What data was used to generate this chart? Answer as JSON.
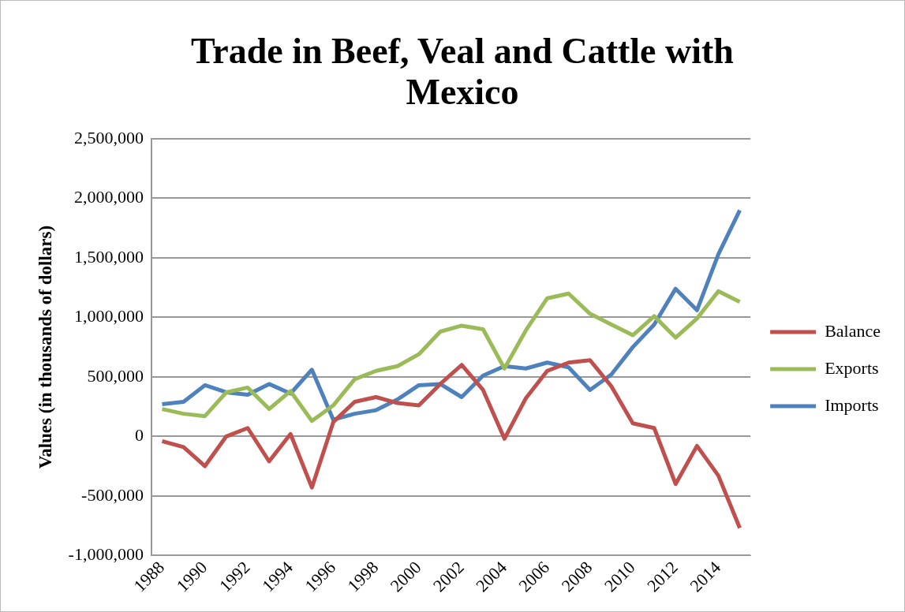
{
  "chart_data": {
    "type": "line",
    "title": "Trade in Beef, Veal and Cattle with Mexico",
    "ylabel": "Values (in thousands of dollars)",
    "categories": [
      "1988",
      null,
      "1990",
      null,
      "1992",
      null,
      "1994",
      null,
      "1996",
      null,
      "1998",
      null,
      "2000",
      null,
      "2002",
      null,
      "2004",
      null,
      "2006",
      null,
      "2008",
      null,
      "2010",
      null,
      "2012",
      null,
      "2014",
      null
    ],
    "series": [
      {
        "name": "Balance",
        "color": "#c0504d",
        "values": [
          -40000,
          -90000,
          -250000,
          0,
          70000,
          -210000,
          20000,
          -430000,
          120000,
          290000,
          330000,
          280000,
          260000,
          440000,
          600000,
          390000,
          -20000,
          320000,
          550000,
          620000,
          640000,
          420000,
          110000,
          70000,
          -400000,
          -80000,
          -330000,
          -770000
        ]
      },
      {
        "name": "Exports",
        "color": "#9bbb59",
        "values": [
          230000,
          190000,
          170000,
          370000,
          410000,
          230000,
          380000,
          130000,
          260000,
          480000,
          550000,
          590000,
          690000,
          880000,
          930000,
          900000,
          570000,
          890000,
          1160000,
          1200000,
          1030000,
          940000,
          850000,
          1010000,
          830000,
          990000,
          1220000,
          1130000
        ]
      },
      {
        "name": "Imports",
        "color": "#4f81bd",
        "values": [
          270000,
          290000,
          430000,
          370000,
          350000,
          440000,
          360000,
          560000,
          140000,
          190000,
          220000,
          310000,
          430000,
          440000,
          330000,
          510000,
          590000,
          570000,
          620000,
          580000,
          390000,
          520000,
          750000,
          940000,
          1240000,
          1060000,
          1530000,
          1900000
        ]
      }
    ],
    "ylim": [
      -1000000,
      2500000
    ],
    "yticks": [
      {
        "value": -1000000,
        "label": "-1,000,000"
      },
      {
        "value": -500000,
        "label": "-500,000"
      },
      0,
      {
        "value": 500000,
        "label": "500,000"
      },
      {
        "value": 1000000,
        "label": "1,000,000"
      },
      {
        "value": 1500000,
        "label": "1,500,000"
      },
      {
        "value": 2000000,
        "label": "2,000,000"
      },
      {
        "value": 2500000,
        "label": "2,500,000"
      }
    ],
    "grid": "y",
    "legend": "right",
    "marker": "none",
    "line_style": "solid"
  }
}
